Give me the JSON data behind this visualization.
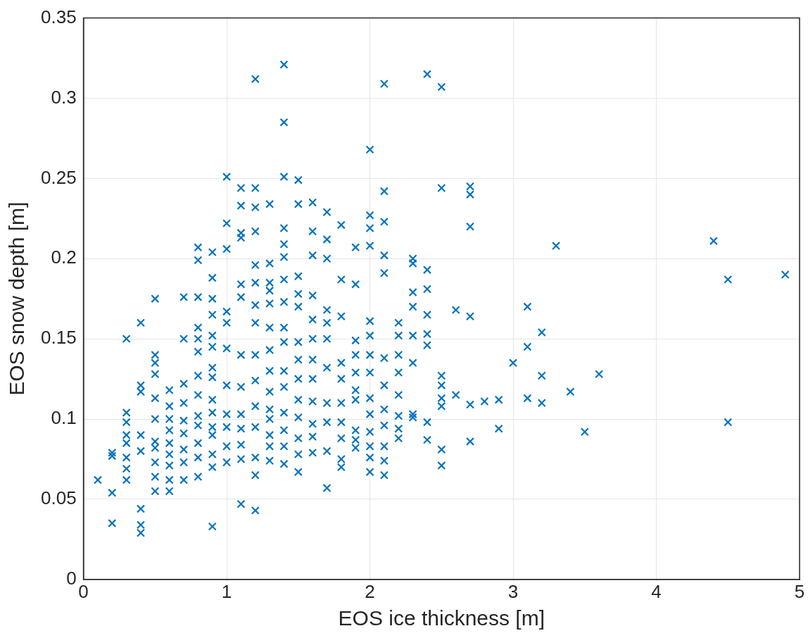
{
  "chart_data": {
    "type": "scatter",
    "xlabel": "EOS ice thickness [m]",
    "ylabel": "EOS snow depth [m]",
    "xlim": [
      0,
      5
    ],
    "xticks": [
      0,
      1,
      2,
      3,
      4,
      5
    ],
    "ylim": [
      0,
      0.35
    ],
    "yticks": [
      0,
      0.05,
      0.1,
      0.15,
      0.2,
      0.25,
      0.3,
      0.35
    ],
    "grid": true,
    "marker": "cross",
    "series": [
      {
        "color": "#0072bd",
        "x": [
          0.1,
          0.2,
          0.2,
          0.2,
          0.2,
          0.3,
          0.3,
          0.3,
          0.3,
          0.3,
          0.3,
          0.3,
          0.3,
          0.4,
          0.4,
          0.4,
          0.4,
          0.4,
          0.4,
          0.4,
          0.4,
          0.5,
          0.5,
          0.5,
          0.5,
          0.5,
          0.5,
          0.5,
          0.5,
          0.5,
          0.5,
          0.5,
          0.6,
          0.6,
          0.6,
          0.6,
          0.6,
          0.6,
          0.6,
          0.6,
          0.6,
          0.7,
          0.7,
          0.7,
          0.7,
          0.7,
          0.7,
          0.7,
          0.7,
          0.7,
          0.8,
          0.8,
          0.8,
          0.8,
          0.8,
          0.8,
          0.8,
          0.8,
          0.8,
          0.8,
          0.8,
          0.8,
          0.8,
          0.9,
          0.9,
          0.9,
          0.9,
          0.9,
          0.9,
          0.9,
          0.9,
          0.9,
          0.9,
          0.9,
          0.9,
          0.9,
          0.9,
          0.9,
          1.0,
          1.0,
          1.0,
          1.0,
          1.0,
          1.0,
          1.0,
          1.0,
          1.0,
          1.0,
          1.0,
          1.1,
          1.1,
          1.1,
          1.1,
          1.1,
          1.1,
          1.1,
          1.1,
          1.1,
          1.1,
          1.1,
          1.1,
          1.1,
          1.2,
          1.2,
          1.2,
          1.2,
          1.2,
          1.2,
          1.2,
          1.2,
          1.2,
          1.2,
          1.2,
          1.2,
          1.2,
          1.2,
          1.2,
          1.3,
          1.3,
          1.3,
          1.3,
          1.3,
          1.3,
          1.3,
          1.3,
          1.3,
          1.3,
          1.3,
          1.3,
          1.3,
          1.3,
          1.4,
          1.4,
          1.4,
          1.4,
          1.4,
          1.4,
          1.4,
          1.4,
          1.4,
          1.4,
          1.4,
          1.4,
          1.4,
          1.4,
          1.4,
          1.4,
          1.5,
          1.5,
          1.5,
          1.5,
          1.5,
          1.5,
          1.5,
          1.5,
          1.5,
          1.5,
          1.5,
          1.5,
          1.5,
          1.6,
          1.6,
          1.6,
          1.6,
          1.6,
          1.6,
          1.6,
          1.6,
          1.6,
          1.6,
          1.6,
          1.6,
          1.7,
          1.7,
          1.7,
          1.7,
          1.7,
          1.7,
          1.7,
          1.7,
          1.7,
          1.7,
          1.7,
          1.8,
          1.8,
          1.8,
          1.8,
          1.8,
          1.8,
          1.8,
          1.8,
          1.8,
          1.8,
          1.9,
          1.9,
          1.9,
          1.9,
          1.9,
          1.9,
          1.9,
          1.9,
          1.9,
          1.9,
          2.0,
          2.0,
          2.0,
          2.0,
          2.0,
          2.0,
          2.0,
          2.0,
          2.0,
          2.0,
          2.0,
          2.0,
          2.0,
          2.0,
          2.1,
          2.1,
          2.1,
          2.1,
          2.1,
          2.1,
          2.1,
          2.1,
          2.1,
          2.1,
          2.1,
          2.1,
          2.2,
          2.2,
          2.2,
          2.2,
          2.2,
          2.2,
          2.2,
          2.2,
          2.3,
          2.3,
          2.3,
          2.3,
          2.3,
          2.3,
          2.3,
          2.3,
          2.4,
          2.4,
          2.4,
          2.4,
          2.4,
          2.4,
          2.4,
          2.4,
          2.5,
          2.5,
          2.5,
          2.5,
          2.5,
          2.5,
          2.5,
          2.5,
          2.6,
          2.6,
          2.7,
          2.7,
          2.7,
          2.7,
          2.7,
          2.7,
          2.8,
          2.9,
          2.9,
          3.0,
          3.1,
          3.1,
          3.1,
          3.2,
          3.2,
          3.2,
          3.3,
          3.4,
          3.5,
          3.6,
          4.4,
          4.5,
          4.5,
          4.9
        ],
        "values": [
          0.062,
          0.079,
          0.077,
          0.054,
          0.035,
          0.15,
          0.104,
          0.098,
          0.09,
          0.085,
          0.076,
          0.069,
          0.062,
          0.16,
          0.121,
          0.117,
          0.09,
          0.08,
          0.044,
          0.034,
          0.029,
          0.175,
          0.14,
          0.135,
          0.128,
          0.113,
          0.1,
          0.086,
          0.082,
          0.073,
          0.064,
          0.055,
          0.118,
          0.108,
          0.1,
          0.093,
          0.085,
          0.078,
          0.071,
          0.062,
          0.055,
          0.176,
          0.15,
          0.122,
          0.11,
          0.099,
          0.091,
          0.081,
          0.073,
          0.062,
          0.207,
          0.199,
          0.176,
          0.157,
          0.15,
          0.142,
          0.127,
          0.115,
          0.102,
          0.096,
          0.085,
          0.076,
          0.064,
          0.204,
          0.188,
          0.175,
          0.165,
          0.152,
          0.145,
          0.132,
          0.126,
          0.112,
          0.104,
          0.095,
          0.09,
          0.078,
          0.07,
          0.033,
          0.251,
          0.222,
          0.206,
          0.167,
          0.16,
          0.144,
          0.121,
          0.103,
          0.095,
          0.083,
          0.073,
          0.244,
          0.233,
          0.216,
          0.213,
          0.184,
          0.176,
          0.14,
          0.12,
          0.103,
          0.094,
          0.084,
          0.075,
          0.047,
          0.312,
          0.244,
          0.232,
          0.217,
          0.196,
          0.185,
          0.171,
          0.16,
          0.14,
          0.124,
          0.108,
          0.095,
          0.076,
          0.065,
          0.043,
          0.234,
          0.197,
          0.185,
          0.18,
          0.172,
          0.157,
          0.143,
          0.13,
          0.117,
          0.106,
          0.1,
          0.09,
          0.083,
          0.074,
          0.321,
          0.285,
          0.251,
          0.219,
          0.209,
          0.201,
          0.187,
          0.173,
          0.157,
          0.148,
          0.13,
          0.12,
          0.104,
          0.093,
          0.083,
          0.072,
          0.249,
          0.234,
          0.189,
          0.178,
          0.17,
          0.148,
          0.137,
          0.125,
          0.112,
          0.101,
          0.088,
          0.078,
          0.067,
          0.235,
          0.217,
          0.202,
          0.177,
          0.162,
          0.15,
          0.137,
          0.125,
          0.111,
          0.097,
          0.089,
          0.079,
          0.229,
          0.212,
          0.2,
          0.168,
          0.16,
          0.15,
          0.132,
          0.11,
          0.098,
          0.08,
          0.057,
          0.221,
          0.187,
          0.164,
          0.135,
          0.125,
          0.11,
          0.098,
          0.088,
          0.075,
          0.07,
          0.207,
          0.184,
          0.149,
          0.14,
          0.129,
          0.118,
          0.112,
          0.093,
          0.087,
          0.082,
          0.268,
          0.227,
          0.219,
          0.208,
          0.161,
          0.152,
          0.14,
          0.129,
          0.113,
          0.103,
          0.092,
          0.083,
          0.076,
          0.067,
          0.309,
          0.242,
          0.223,
          0.202,
          0.191,
          0.138,
          0.121,
          0.106,
          0.096,
          0.083,
          0.074,
          0.065,
          0.16,
          0.152,
          0.14,
          0.129,
          0.115,
          0.102,
          0.094,
          0.088,
          0.2,
          0.197,
          0.179,
          0.17,
          0.152,
          0.135,
          0.103,
          0.101,
          0.315,
          0.193,
          0.181,
          0.165,
          0.153,
          0.146,
          0.098,
          0.087,
          0.307,
          0.244,
          0.127,
          0.121,
          0.113,
          0.108,
          0.081,
          0.071,
          0.168,
          0.115,
          0.245,
          0.24,
          0.22,
          0.164,
          0.109,
          0.086,
          0.111,
          0.112,
          0.094,
          0.135,
          0.17,
          0.145,
          0.113,
          0.154,
          0.127,
          0.11,
          0.208,
          0.117,
          0.092,
          0.128,
          0.211,
          0.187,
          0.098,
          0.19
        ]
      }
    ]
  }
}
